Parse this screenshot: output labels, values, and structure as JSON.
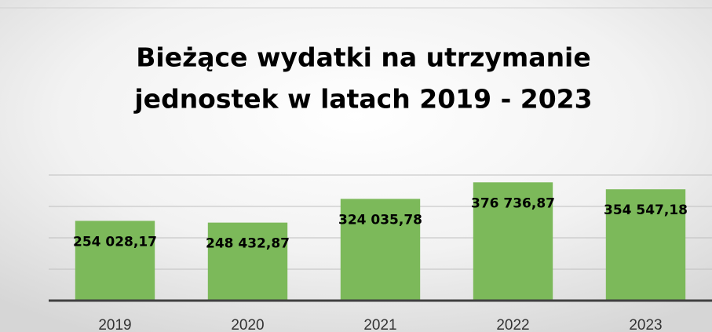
{
  "chart_data": {
    "type": "bar",
    "title": [
      "Bieżące wydatki na utrzymanie",
      "jednostek w latach 2019 - 2023"
    ],
    "categories": [
      "2019",
      "2020",
      "2021",
      "2022",
      "2023"
    ],
    "values": [
      254028.17,
      248432.87,
      324035.78,
      376736.87,
      354547.18
    ],
    "value_labels": [
      "254 028,17",
      "248 432,87",
      "324 035,78",
      "376 736,87",
      "354 547,18"
    ],
    "color": "#7cb95a",
    "ylim": [
      0,
      400000
    ],
    "yticks": [
      0,
      100000,
      200000,
      300000,
      400000
    ],
    "grid": true
  }
}
